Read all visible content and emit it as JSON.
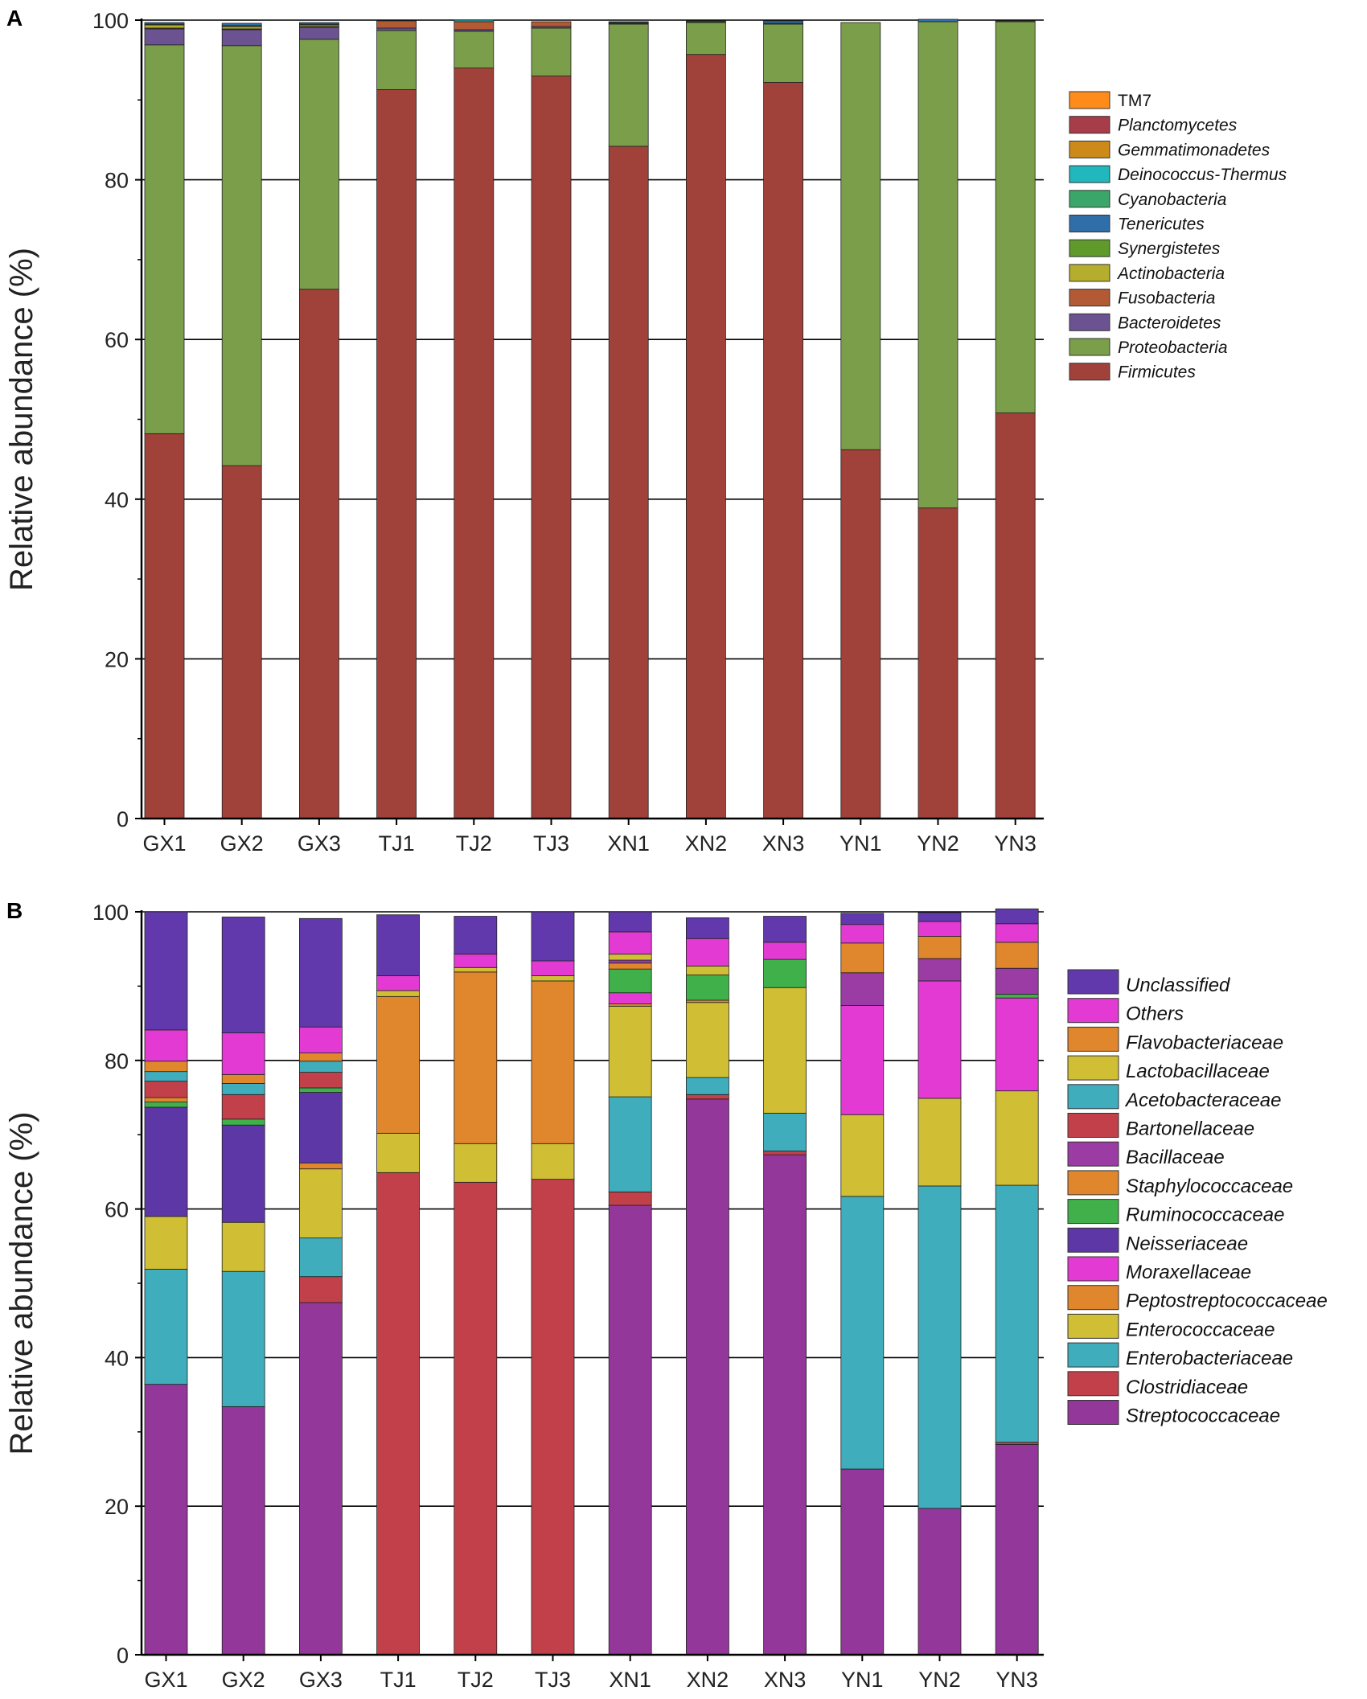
{
  "chart_data": [
    {
      "panel": "A",
      "type": "bar",
      "stacked": true,
      "ylabel": "Relative abundance (%)",
      "ylim": [
        0,
        100
      ],
      "yticks": [
        0,
        20,
        40,
        60,
        80,
        100
      ],
      "grid": true,
      "legend_position": "right",
      "categories": [
        "GX1",
        "GX2",
        "GX3",
        "TJ1",
        "TJ2",
        "TJ3",
        "XN1",
        "XN2",
        "XN3",
        "YN1",
        "YN2",
        "YN3"
      ],
      "series": [
        {
          "name": "Firmicutes",
          "italic": true,
          "color": "#a0423a",
          "values": [
            48.2,
            44.2,
            66.3,
            91.3,
            94.0,
            93.0,
            84.2,
            95.7,
            92.2,
            46.2,
            38.9,
            50.8
          ]
        },
        {
          "name": "Proteobacteria",
          "italic": true,
          "color": "#7a9e49",
          "values": [
            48.7,
            52.6,
            31.3,
            7.4,
            4.6,
            6.0,
            15.3,
            4.0,
            7.3,
            53.5,
            60.9,
            49.0
          ]
        },
        {
          "name": "Bacteroidetes",
          "italic": true,
          "color": "#6b5290",
          "values": [
            2.0,
            2.0,
            1.5,
            0.3,
            0.2,
            0.2,
            0.1,
            0.0,
            0.1,
            0.0,
            0.0,
            0.0
          ]
        },
        {
          "name": "Fusobacteria",
          "italic": true,
          "color": "#b25a34",
          "values": [
            0.1,
            0.1,
            0.1,
            0.9,
            1.0,
            0.6,
            0.0,
            0.0,
            0.0,
            0.0,
            0.0,
            0.1
          ]
        },
        {
          "name": "Actinobacteria",
          "italic": true,
          "color": "#b5ad2c",
          "values": [
            0.4,
            0.3,
            0.2,
            0.0,
            0.0,
            0.0,
            0.0,
            0.0,
            0.0,
            0.0,
            0.0,
            0.0
          ]
        },
        {
          "name": "Synergistetes",
          "italic": true,
          "color": "#5f9a2b",
          "values": [
            0.1,
            0.1,
            0.1,
            0.0,
            0.0,
            0.0,
            0.1,
            0.1,
            0.0,
            0.0,
            0.0,
            0.0
          ]
        },
        {
          "name": "Tenericutes",
          "italic": true,
          "color": "#2f6ea8",
          "values": [
            0.2,
            0.3,
            0.2,
            0.0,
            0.0,
            0.0,
            0.1,
            0.0,
            0.3,
            0.0,
            0.3,
            0.0
          ]
        },
        {
          "name": "Cyanobacteria",
          "italic": true,
          "color": "#3aa66a",
          "values": [
            0.0,
            0.0,
            0.0,
            0.0,
            0.0,
            0.0,
            0.0,
            0.1,
            0.0,
            0.0,
            0.0,
            0.0
          ]
        },
        {
          "name": "Deinococcus-Thermus",
          "italic": true,
          "color": "#20b7bd",
          "values": [
            0.0,
            0.0,
            0.0,
            0.0,
            0.2,
            0.0,
            0.0,
            0.0,
            0.0,
            0.0,
            0.0,
            0.0
          ]
        },
        {
          "name": "Gemmatimonadetes",
          "italic": true,
          "color": "#cc8a1a",
          "values": [
            0.0,
            0.0,
            0.0,
            0.0,
            0.0,
            0.0,
            0.0,
            0.0,
            0.0,
            0.0,
            0.0,
            0.0
          ]
        },
        {
          "name": "Planctomycetes",
          "italic": true,
          "color": "#a63d48",
          "values": [
            0.0,
            0.0,
            0.0,
            0.0,
            0.0,
            0.0,
            0.0,
            0.0,
            0.0,
            0.0,
            0.0,
            0.0
          ]
        },
        {
          "name": "TM7",
          "italic": false,
          "color": "#ff8c1a",
          "values": [
            0.0,
            0.0,
            0.0,
            0.0,
            0.0,
            0.0,
            0.0,
            0.0,
            0.0,
            0.0,
            0.0,
            0.0
          ]
        }
      ]
    },
    {
      "panel": "B",
      "type": "bar",
      "stacked": true,
      "ylabel": "Relative abundance (%)",
      "ylim": [
        0,
        100
      ],
      "yticks": [
        0,
        20,
        40,
        60,
        80,
        100
      ],
      "grid": true,
      "legend_position": "right",
      "categories": [
        "GX1",
        "GX2",
        "GX3",
        "TJ1",
        "TJ2",
        "TJ3",
        "XN1",
        "XN2",
        "XN3",
        "YN1",
        "YN2",
        "YN3"
      ],
      "series": [
        {
          "name": "Streptococcaceae",
          "italic": true,
          "color": "#93379a",
          "values": [
            36.4,
            33.4,
            47.4,
            0.0,
            0.0,
            0.0,
            60.5,
            74.8,
            67.3,
            25.0,
            19.7,
            28.3
          ]
        },
        {
          "name": "Clostridiaceae",
          "italic": true,
          "color": "#c2404a",
          "values": [
            0.0,
            0.0,
            3.5,
            64.9,
            63.6,
            64.0,
            1.8,
            0.6,
            0.5,
            0.0,
            0.0,
            0.3
          ]
        },
        {
          "name": "Enterobacteriaceae",
          "italic": true,
          "color": "#3fadbc",
          "values": [
            15.5,
            18.2,
            5.2,
            0.0,
            0.0,
            0.0,
            12.8,
            2.3,
            5.1,
            36.7,
            43.4,
            34.6
          ]
        },
        {
          "name": "Enterococcaceae",
          "italic": true,
          "color": "#d0be34",
          "values": [
            7.1,
            6.6,
            9.3,
            5.3,
            5.2,
            4.8,
            12.2,
            10.1,
            16.9,
            11.0,
            11.8,
            12.7
          ]
        },
        {
          "name": "Peptostreptococcaceae",
          "italic": true,
          "color": "#e0862c",
          "values": [
            0.0,
            0.0,
            0.8,
            18.4,
            23.1,
            21.9,
            0.3,
            0.3,
            0.0,
            0.0,
            0.0,
            0.0
          ]
        },
        {
          "name": "Moraxellaceae",
          "italic": true,
          "color": "#e23ad3",
          "values": [
            0.0,
            0.0,
            0.0,
            0.0,
            0.0,
            0.0,
            1.5,
            0.0,
            0.0,
            14.7,
            15.8,
            12.5
          ]
        },
        {
          "name": "Neisseriaceae",
          "italic": true,
          "color": "#5e37a6",
          "values": [
            14.7,
            13.1,
            9.5,
            0.0,
            0.0,
            0.0,
            0.0,
            0.0,
            0.0,
            0.0,
            0.0,
            0.0
          ]
        },
        {
          "name": "Ruminococcaceae",
          "italic": true,
          "color": "#3fb04a",
          "values": [
            0.7,
            0.8,
            0.6,
            0.0,
            0.0,
            0.0,
            3.2,
            3.4,
            3.8,
            0.0,
            0.0,
            0.5
          ]
        },
        {
          "name": "Staphylococcaceae",
          "italic": true,
          "color": "#e0862c",
          "values": [
            0.6,
            0.0,
            0.0,
            0.0,
            0.0,
            0.0,
            0.8,
            0.0,
            0.0,
            0.0,
            0.0,
            0.0
          ]
        },
        {
          "name": "Bacillaceae",
          "italic": true,
          "color": "#9a3ca3",
          "values": [
            0.0,
            0.0,
            0.0,
            0.0,
            0.0,
            0.0,
            0.4,
            0.0,
            0.0,
            4.4,
            3.0,
            3.5
          ]
        },
        {
          "name": "Bartonellaceae",
          "italic": true,
          "color": "#c2404a",
          "values": [
            2.2,
            3.3,
            2.1,
            0.0,
            0.0,
            0.0,
            0.0,
            0.0,
            0.0,
            0.0,
            0.0,
            0.0
          ]
        },
        {
          "name": "Acetobacteraceae",
          "italic": true,
          "color": "#3fadbc",
          "values": [
            1.3,
            1.5,
            1.5,
            0.0,
            0.0,
            0.0,
            0.0,
            0.0,
            0.0,
            0.0,
            0.0,
            0.0
          ]
        },
        {
          "name": "Lactobacillaceae",
          "italic": true,
          "color": "#d0be34",
          "values": [
            0.0,
            0.0,
            0.0,
            0.8,
            0.6,
            0.7,
            0.8,
            1.2,
            0.0,
            0.0,
            0.0,
            0.0
          ]
        },
        {
          "name": "Flavobacteriaceae",
          "italic": true,
          "color": "#e0862c",
          "values": [
            1.4,
            1.2,
            1.1,
            0.0,
            0.0,
            0.0,
            0.0,
            0.0,
            0.0,
            4.0,
            3.0,
            3.5
          ]
        },
        {
          "name": "Others",
          "italic": true,
          "color": "#e23ad3",
          "values": [
            4.2,
            5.6,
            3.5,
            2.0,
            1.8,
            2.0,
            3.0,
            3.7,
            2.3,
            2.5,
            2.0,
            2.5
          ]
        },
        {
          "name": "Unclassified",
          "italic": true,
          "color": "#6239ad",
          "values": [
            15.9,
            15.6,
            14.6,
            8.2,
            5.1,
            6.6,
            2.7,
            2.8,
            3.5,
            1.5,
            1.2,
            2.0
          ]
        }
      ]
    }
  ],
  "panels": [
    {
      "letter": "A",
      "legend_order": [
        "TM7",
        "Planctomycetes",
        "Gemmatimonadetes",
        "Deinococcus-Thermus",
        "Cyanobacteria",
        "Tenericutes",
        "Synergistetes",
        "Actinobacteria",
        "Fusobacteria",
        "Bacteroidetes",
        "Proteobacteria",
        "Firmicutes"
      ]
    },
    {
      "letter": "B",
      "legend_order": [
        "Unclassified",
        "Others",
        "Flavobacteriaceae",
        "Lactobacillaceae",
        "Acetobacteraceae",
        "Bartonellaceae",
        "Bacillaceae",
        "Staphylococcaceae",
        "Ruminococcaceae",
        "Neisseriaceae",
        "Moraxellaceae",
        "Peptostreptococcaceae",
        "Enterococcaceae",
        "Enterobacteriaceae",
        "Clostridiaceae",
        "Streptococcaceae"
      ]
    }
  ]
}
